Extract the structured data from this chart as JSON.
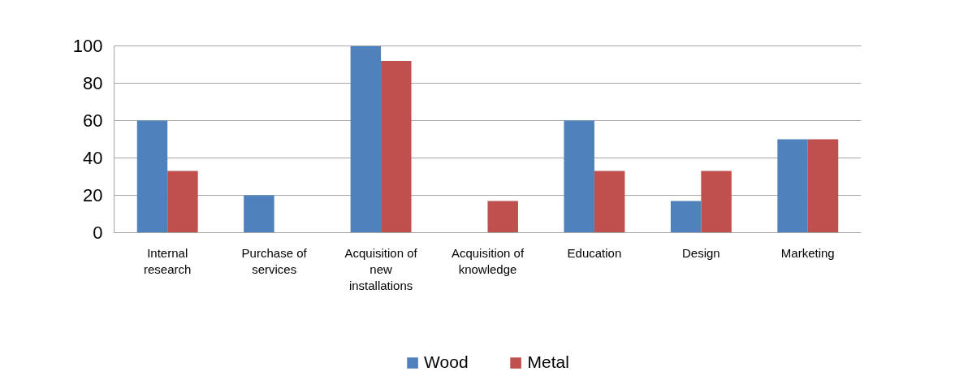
{
  "chart_data": {
    "type": "bar",
    "categories": [
      "Internal research",
      "Purchase of services",
      "Acquisition of new installations",
      "Acquisition of knowledge",
      "Education",
      "Design",
      "Marketing"
    ],
    "series": [
      {
        "name": "Wood",
        "color": "#4f81bd",
        "values": [
          60,
          20,
          100,
          0,
          60,
          17,
          50
        ]
      },
      {
        "name": "Metal",
        "color": "#c0504d",
        "values": [
          33,
          0,
          92,
          17,
          33,
          33,
          50
        ]
      }
    ],
    "ylim": [
      0,
      100
    ],
    "yticks": [
      0,
      20,
      40,
      60,
      80,
      100
    ],
    "grid": "y",
    "legend": "bottom"
  }
}
